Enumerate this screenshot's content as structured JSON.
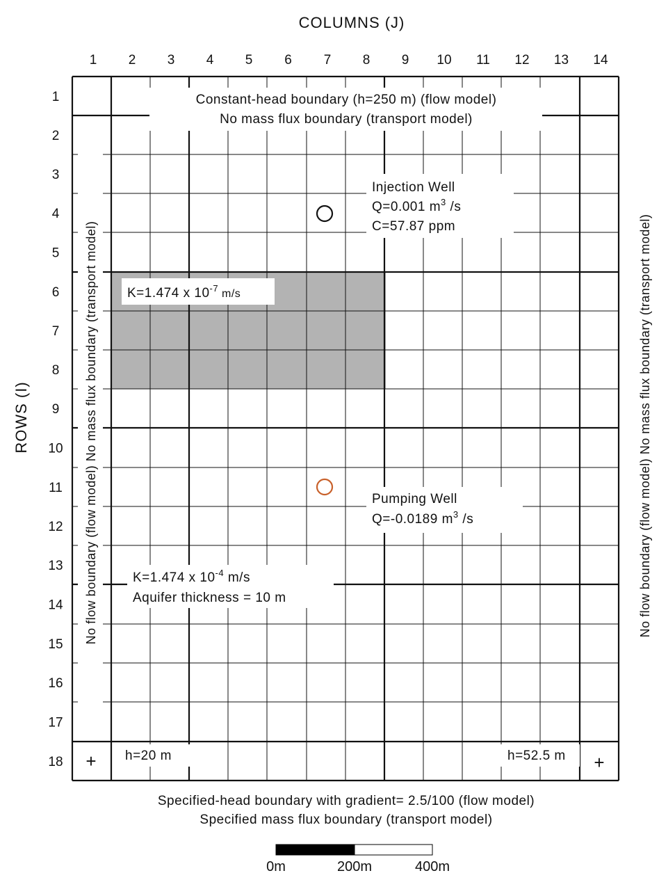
{
  "axes": {
    "columns_title": "COLUMNS (J)",
    "rows_title": "ROWS (I)",
    "column_numbers": [
      "1",
      "2",
      "3",
      "4",
      "5",
      "6",
      "7",
      "8",
      "9",
      "10",
      "11",
      "12",
      "13",
      "14"
    ],
    "row_numbers": [
      "1",
      "2",
      "3",
      "4",
      "5",
      "6",
      "7",
      "8",
      "9",
      "10",
      "11",
      "12",
      "13",
      "14",
      "15",
      "16",
      "17",
      "18"
    ]
  },
  "boundaries": {
    "top_line1": "Constant-head boundary (h=250 m) (flow model)",
    "top_line2": "No mass flux boundary (transport model)",
    "bottom_line1": "Specified-head boundary with gradient= 2.5/100 (flow model)",
    "bottom_line2": "Specified mass flux boundary (transport model)",
    "left": "No flow boundary (flow model)  No mass flux boundary (transport model)",
    "right": "No flow boundary (flow model)  No mass flux boundary (transport model)"
  },
  "low_k_zone": {
    "label_prefix": "K=1.474 x 10",
    "label_exp": "-7",
    "label_unit": " m/s",
    "fill": "#b3b3b3"
  },
  "aquifer": {
    "label_prefix": "K=1.474 x 10",
    "label_exp": "-4",
    "label_unit": " m/s",
    "thickness": "Aquifer thickness = 10 m"
  },
  "injection_well": {
    "title": "Injection Well",
    "q_prefix": "Q=0.001 m",
    "q_exp": "3",
    "q_unit": " /s",
    "c": "C=57.87 ppm",
    "color": "#111111"
  },
  "pumping_well": {
    "title": "Pumping Well",
    "q_prefix": "Q=-0.0189 m",
    "q_exp": "3",
    "q_unit": " /s",
    "color": "#c8602a"
  },
  "heads": {
    "left": "h=20 m",
    "right": "h=52.5 m"
  },
  "corner_marks": [
    "+",
    "+"
  ],
  "scale_bar": {
    "labels": [
      "0m",
      "200m",
      "400m"
    ]
  }
}
